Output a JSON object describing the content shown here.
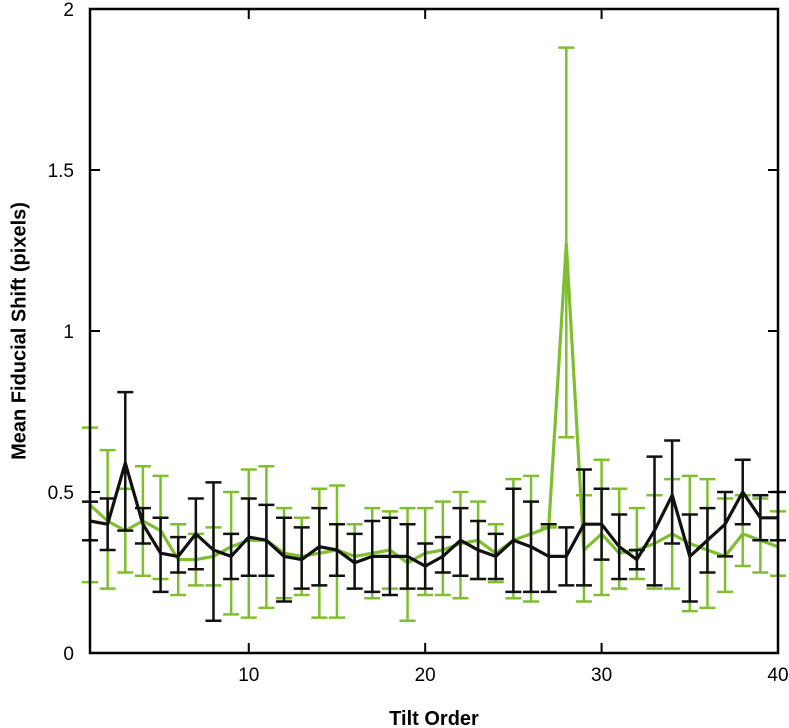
{
  "chart_data": {
    "type": "line",
    "title": "",
    "xlabel": "Tilt Order",
    "ylabel": "Mean Fiducial Shift (pixels)",
    "xlim": [
      1,
      40
    ],
    "ylim": [
      0,
      2
    ],
    "xticks": [
      10,
      20,
      30,
      40
    ],
    "yticks": [
      0,
      0.5,
      1,
      1.5,
      2
    ],
    "xtick_labels": [
      "10",
      "20",
      "30",
      "40"
    ],
    "ytick_labels": [
      "0",
      "0.5",
      "1",
      "1.5",
      "2"
    ],
    "grid": false,
    "legend": "none",
    "x": [
      1,
      2,
      3,
      4,
      5,
      6,
      7,
      8,
      9,
      10,
      11,
      12,
      13,
      14,
      15,
      16,
      17,
      18,
      19,
      20,
      21,
      22,
      23,
      24,
      25,
      26,
      27,
      28,
      29,
      30,
      31,
      32,
      33,
      34,
      35,
      36,
      37,
      38,
      39,
      40
    ],
    "series": [
      {
        "color": "#7fbf2f",
        "values": [
          0.46,
          0.41,
          0.38,
          0.41,
          0.38,
          0.29,
          0.29,
          0.3,
          0.33,
          0.35,
          0.35,
          0.31,
          0.3,
          0.31,
          0.32,
          0.3,
          0.31,
          0.32,
          0.28,
          0.31,
          0.32,
          0.34,
          0.35,
          0.31,
          0.35,
          0.37,
          0.39,
          1.27,
          0.32,
          0.37,
          0.31,
          0.32,
          0.34,
          0.37,
          0.34,
          0.32,
          0.3,
          0.37,
          0.35,
          0.33
        ],
        "error_low": [
          0.22,
          0.2,
          0.25,
          0.24,
          0.23,
          0.18,
          0.21,
          0.21,
          0.12,
          0.11,
          0.14,
          0.17,
          0.18,
          0.11,
          0.11,
          0.2,
          0.17,
          0.2,
          0.1,
          0.18,
          0.18,
          0.17,
          0.23,
          0.22,
          0.17,
          0.16,
          0.39,
          0.67,
          0.16,
          0.18,
          0.2,
          0.23,
          0.2,
          0.2,
          0.13,
          0.14,
          0.19,
          0.27,
          0.25,
          0.24
        ],
        "error_high": [
          0.7,
          0.63,
          0.51,
          0.58,
          0.55,
          0.4,
          0.37,
          0.39,
          0.5,
          0.57,
          0.58,
          0.45,
          0.42,
          0.51,
          0.52,
          0.4,
          0.45,
          0.44,
          0.45,
          0.45,
          0.47,
          0.5,
          0.47,
          0.4,
          0.54,
          0.55,
          0.39,
          1.88,
          0.49,
          0.6,
          0.51,
          0.45,
          0.49,
          0.54,
          0.55,
          0.54,
          0.48,
          0.49,
          0.48,
          0.44
        ]
      },
      {
        "color": "#111111",
        "values": [
          0.41,
          0.4,
          0.59,
          0.4,
          0.31,
          0.3,
          0.37,
          0.32,
          0.3,
          0.36,
          0.35,
          0.3,
          0.29,
          0.33,
          0.32,
          0.28,
          0.3,
          0.3,
          0.3,
          0.27,
          0.3,
          0.35,
          0.32,
          0.3,
          0.35,
          0.33,
          0.3,
          0.3,
          0.4,
          0.4,
          0.33,
          0.29,
          0.38,
          0.49,
          0.3,
          0.35,
          0.4,
          0.5,
          0.42,
          0.42
        ],
        "error_low": [
          0.35,
          0.32,
          0.38,
          0.34,
          0.19,
          0.25,
          0.26,
          0.1,
          0.23,
          0.24,
          0.24,
          0.16,
          0.2,
          0.21,
          0.24,
          0.2,
          0.19,
          0.18,
          0.2,
          0.2,
          0.25,
          0.24,
          0.23,
          0.23,
          0.19,
          0.19,
          0.19,
          0.21,
          0.21,
          0.29,
          0.23,
          0.26,
          0.21,
          0.34,
          0.16,
          0.25,
          0.3,
          0.4,
          0.35,
          0.35
        ],
        "error_high": [
          0.47,
          0.48,
          0.81,
          0.45,
          0.42,
          0.36,
          0.48,
          0.53,
          0.37,
          0.48,
          0.46,
          0.42,
          0.39,
          0.45,
          0.4,
          0.37,
          0.41,
          0.42,
          0.4,
          0.34,
          0.36,
          0.45,
          0.41,
          0.37,
          0.51,
          0.47,
          0.4,
          0.39,
          0.57,
          0.51,
          0.43,
          0.32,
          0.61,
          0.66,
          0.43,
          0.45,
          0.5,
          0.6,
          0.49,
          0.5
        ]
      }
    ]
  }
}
